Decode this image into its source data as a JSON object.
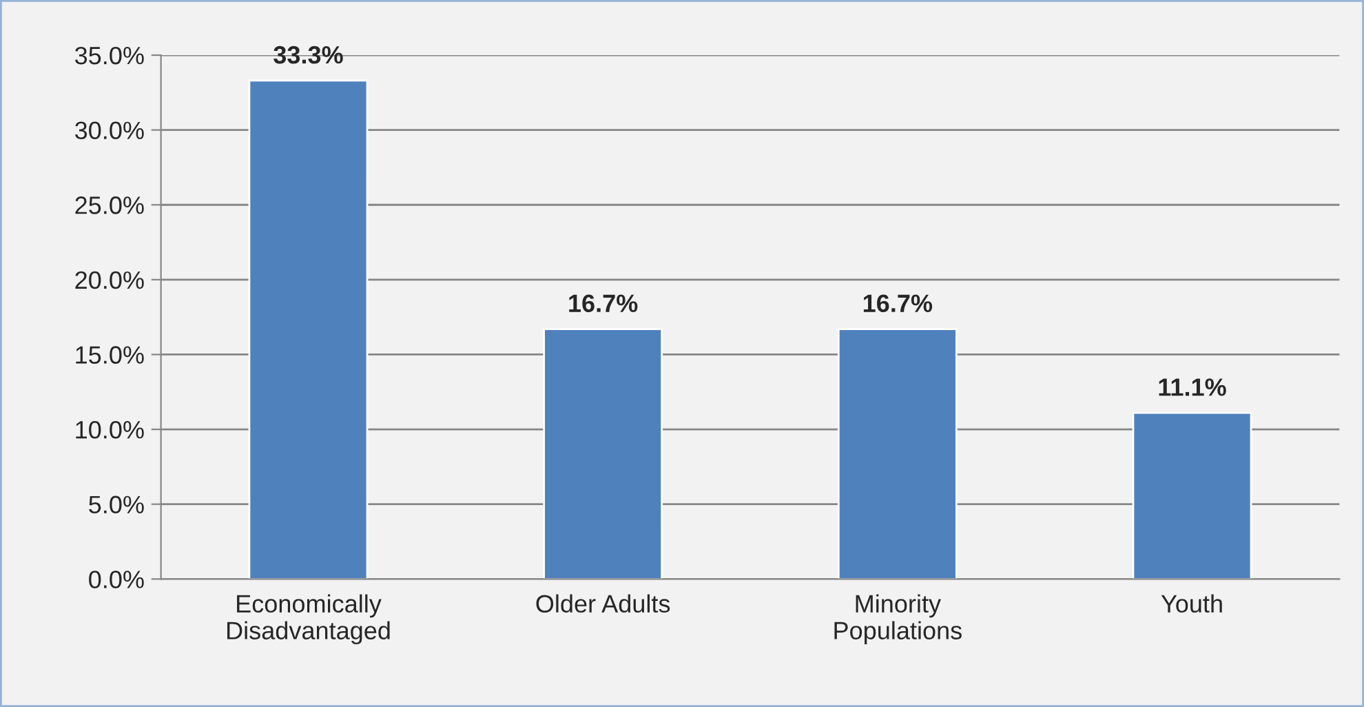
{
  "chart_data": {
    "type": "bar",
    "categories": [
      "Economically\nDisadvantaged",
      "Older Adults",
      "Minority\nPopulations",
      "Youth"
    ],
    "values": [
      33.3,
      16.7,
      16.7,
      11.1
    ],
    "value_labels": [
      "33.3%",
      "16.7%",
      "16.7%",
      "11.1%"
    ],
    "color": "#4f81bd",
    "ylim": [
      0,
      35
    ],
    "yticks": [
      {
        "value": 0,
        "label": "0.0%"
      },
      {
        "value": 5,
        "label": "5.0%"
      },
      {
        "value": 10,
        "label": "10.0%"
      },
      {
        "value": 15,
        "label": "15.0%"
      },
      {
        "value": 20,
        "label": "20.0%"
      },
      {
        "value": 25,
        "label": "25.0%"
      },
      {
        "value": 30,
        "label": "30.0%"
      },
      {
        "value": 35,
        "label": "35.0%"
      }
    ],
    "grid": "y",
    "legend": false
  }
}
